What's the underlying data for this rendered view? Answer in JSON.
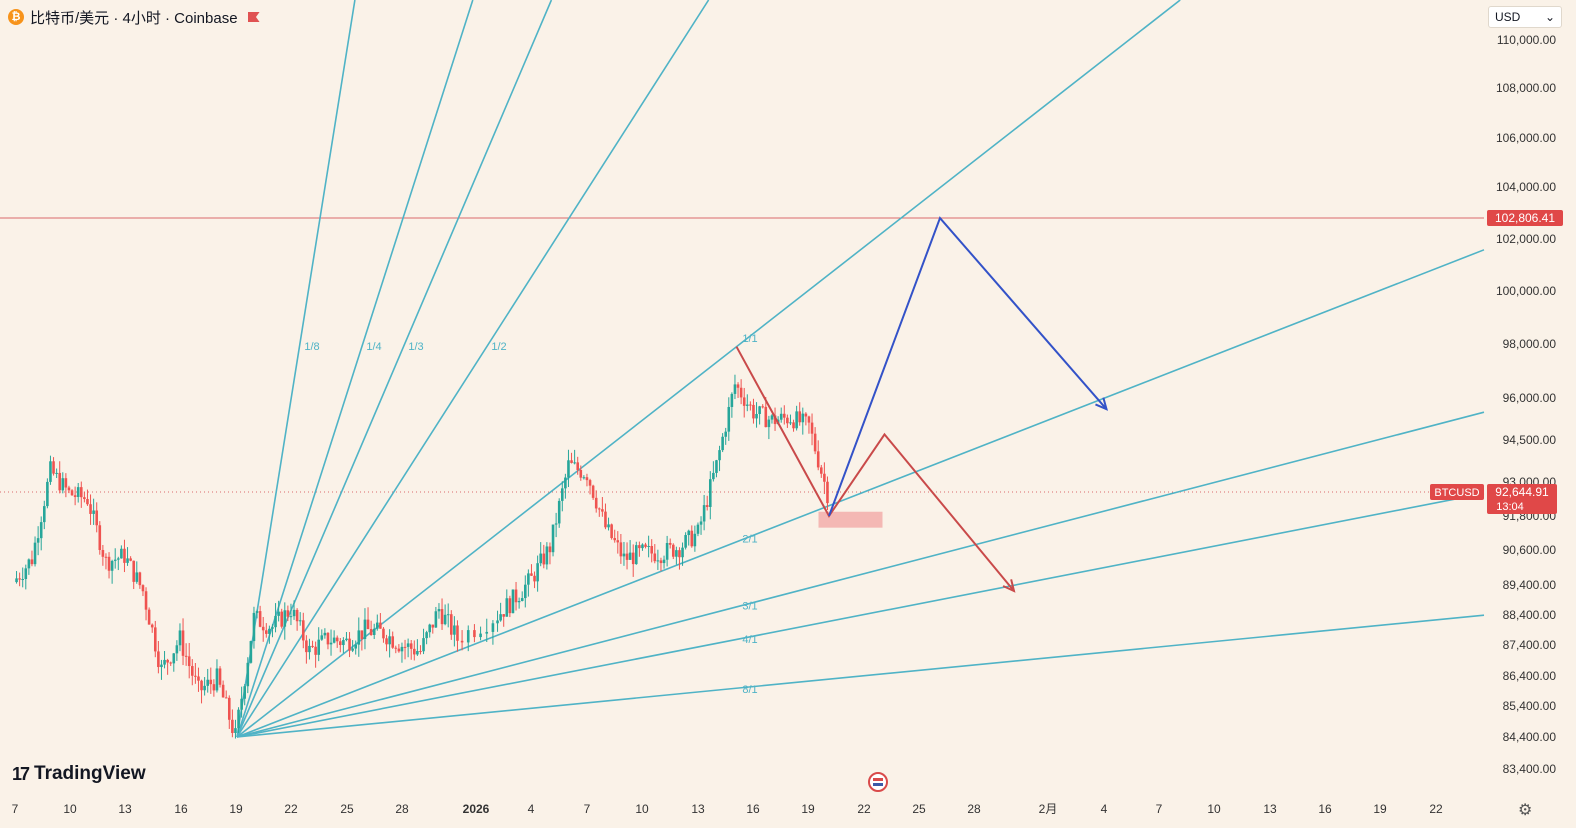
{
  "header": {
    "coin_symbol": "₿",
    "title": "比特币/美元 · 4小时 · Coinbase"
  },
  "currency_select": {
    "value": "USD",
    "icon": "chevron-down-icon"
  },
  "brand": {
    "mark": "17",
    "name": "TradingView"
  },
  "colors": {
    "background": "#faf2e8",
    "fan": "#4fb3c6",
    "up": "#26a69a",
    "down": "#ef5350",
    "red_path": "#c94a4a",
    "blue_path": "#3352c8",
    "price_tag": "#e04848"
  },
  "chart_data": {
    "type": "candlestick",
    "symbol": "BTCUSD",
    "interval": "4小时",
    "exchange": "Coinbase",
    "y_axis_ticks": [
      "110,000.00",
      "108,000.00",
      "106,000.00",
      "104,000.00",
      "102,000.00",
      "100,000.00",
      "98,000.00",
      "96,000.00",
      "94,500.00",
      "93,000.00",
      "91,800.00",
      "90,600.00",
      "89,400.00",
      "88,400.00",
      "87,400.00",
      "86,400.00",
      "85,400.00",
      "84,400.00",
      "83,400.00"
    ],
    "x_axis_ticks": [
      "7",
      "10",
      "13",
      "16",
      "19",
      "22",
      "25",
      "28",
      "2026",
      "4",
      "7",
      "10",
      "13",
      "16",
      "19",
      "22",
      "25",
      "28",
      "2月",
      "4",
      "7",
      "10",
      "13",
      "16",
      "19",
      "22"
    ],
    "resistance_level": {
      "value": 102806.41,
      "label": "102,806.41"
    },
    "current_price": {
      "symbol": "BTCUSD",
      "value": 92644.91,
      "label": "92,644.91",
      "countdown": "13:04"
    },
    "gann_fan": {
      "origin": {
        "date": "2025-12-19",
        "price": 84400
      },
      "ratio_labels": [
        "1/8",
        "1/4",
        "1/3",
        "1/2",
        "1/1",
        "2/1",
        "3/1",
        "4/1",
        "8/1"
      ]
    },
    "ohlc_close_path": [
      {
        "x": "12-07",
        "y": 89500
      },
      {
        "x": "12-08",
        "y": 90300
      },
      {
        "x": "12-09",
        "y": 93400
      },
      {
        "x": "12-10",
        "y": 92600
      },
      {
        "x": "12-11",
        "y": 92400
      },
      {
        "x": "12-12",
        "y": 90200
      },
      {
        "x": "12-13",
        "y": 90400
      },
      {
        "x": "12-14",
        "y": 89200
      },
      {
        "x": "12-15",
        "y": 86600
      },
      {
        "x": "12-16",
        "y": 87600
      },
      {
        "x": "12-17",
        "y": 85900
      },
      {
        "x": "12-18",
        "y": 86300
      },
      {
        "x": "12-19",
        "y": 84400
      },
      {
        "x": "12-20",
        "y": 88300
      },
      {
        "x": "12-21",
        "y": 88000
      },
      {
        "x": "12-22",
        "y": 88600
      },
      {
        "x": "12-23",
        "y": 87200
      },
      {
        "x": "12-24",
        "y": 87600
      },
      {
        "x": "12-25",
        "y": 87500
      },
      {
        "x": "12-26",
        "y": 87900
      },
      {
        "x": "12-27",
        "y": 87800
      },
      {
        "x": "12-28",
        "y": 87400
      },
      {
        "x": "12-29",
        "y": 87200
      },
      {
        "x": "12-30",
        "y": 88600
      },
      {
        "x": "12-31",
        "y": 87600
      },
      {
        "x": "01-01",
        "y": 88300
      },
      {
        "x": "01-02",
        "y": 88900
      },
      {
        "x": "01-03",
        "y": 89600
      },
      {
        "x": "01-04",
        "y": 90700
      },
      {
        "x": "01-05",
        "y": 93600
      },
      {
        "x": "01-06",
        "y": 93300
      },
      {
        "x": "01-07",
        "y": 91400
      },
      {
        "x": "01-08",
        "y": 90300
      },
      {
        "x": "01-09",
        "y": 90500
      },
      {
        "x": "01-10",
        "y": 90500
      },
      {
        "x": "01-11",
        "y": 90700
      },
      {
        "x": "01-12",
        "y": 91200
      },
      {
        "x": "01-13",
        "y": 93600
      },
      {
        "x": "01-14",
        "y": 96500
      },
      {
        "x": "01-15",
        "y": 95500
      },
      {
        "x": "01-16",
        "y": 95200
      },
      {
        "x": "01-17",
        "y": 95300
      },
      {
        "x": "01-18",
        "y": 95000
      },
      {
        "x": "01-19",
        "y": 92600
      }
    ],
    "projection_red": [
      {
        "x": "01-14",
        "y": 97900
      },
      {
        "x": "01-19",
        "y": 91800
      },
      {
        "x": "01-22",
        "y": 94700
      },
      {
        "x": "01-29",
        "y": 89200
      }
    ],
    "projection_blue": [
      {
        "x": "01-19",
        "y": 91800
      },
      {
        "x": "01-25",
        "y": 102806.41
      },
      {
        "x": "02-03",
        "y": 95600
      }
    ],
    "support_zone": {
      "x_start": "01-18",
      "x_end": "01-22",
      "y_low": 91600,
      "y_high": 91950
    }
  }
}
